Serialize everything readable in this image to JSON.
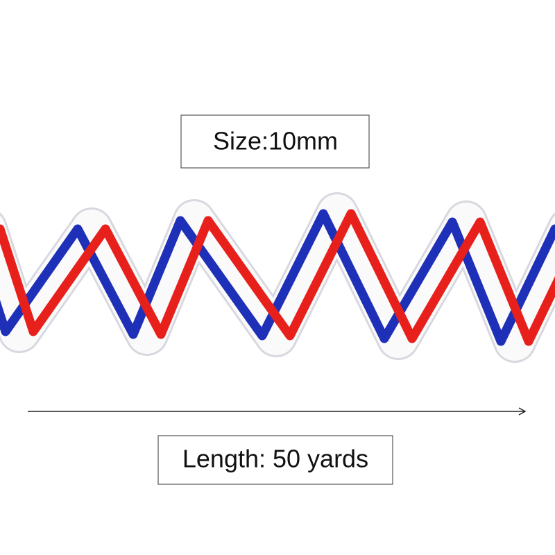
{
  "size_label": "Size:10mm",
  "length_label": "Length: 50 yards"
}
